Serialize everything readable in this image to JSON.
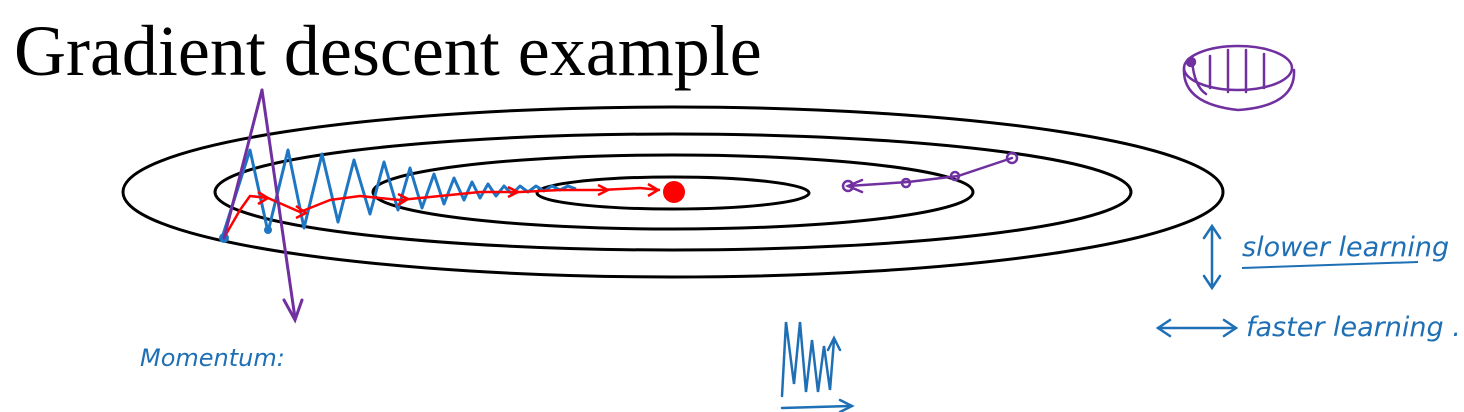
{
  "slide": {
    "title": "Gradient descent example"
  },
  "annotations": {
    "slower_learning": "slower learning",
    "faster_learning": "faster learning .",
    "momentum": "Momentum:"
  },
  "colors": {
    "contours": "#000000",
    "oscillation_path": "#1f77c4",
    "momentum_path": "#ff0000",
    "minimum_point": "#ff0000",
    "purple_annotations": "#7030a0",
    "handwriting": "#1f6fb5"
  }
}
